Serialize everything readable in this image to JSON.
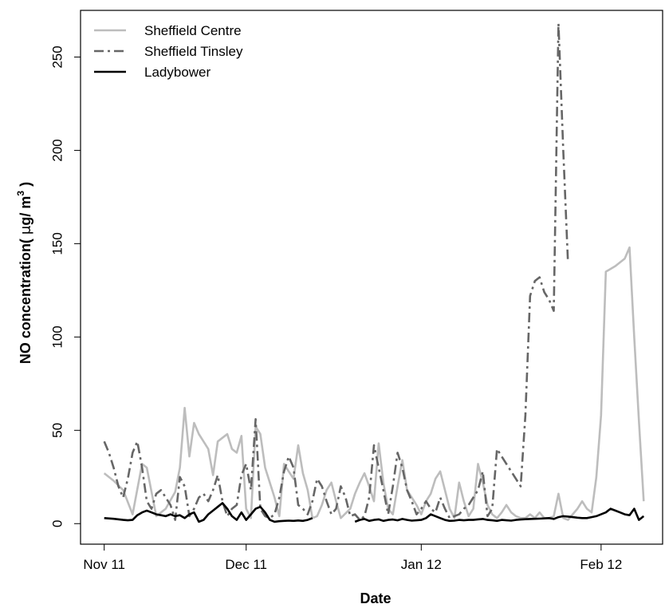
{
  "chart_data": {
    "type": "line",
    "title": "",
    "xlabel": "Date",
    "ylabel": "NO concentration( μg/ m³ )",
    "ylabel_parts": {
      "main": "NO concentration( ",
      "unit_mu": "μ",
      "unit_rest": "g/ m",
      "sup": "3",
      "close": " )"
    },
    "x_ticks": [
      {
        "label": "Nov 11",
        "day": 0
      },
      {
        "label": "Dec 11",
        "day": 30
      },
      {
        "label": "Jan 12",
        "day": 67
      },
      {
        "label": "Feb 12",
        "day": 105
      }
    ],
    "xlim": [
      -5,
      118
    ],
    "ylim": [
      -11,
      275
    ],
    "y_ticks": [
      0,
      50,
      100,
      150,
      200,
      250
    ],
    "grid": false,
    "legend_position": "top-left",
    "series": [
      {
        "name": "Sheffield Centre",
        "color": "#bdbdbd",
        "dash": "solid",
        "points": [
          [
            0,
            27
          ],
          [
            2,
            23
          ],
          [
            4,
            18
          ],
          [
            6,
            5
          ],
          [
            8,
            32
          ],
          [
            9,
            30
          ],
          [
            11,
            4
          ],
          [
            13,
            8
          ],
          [
            15,
            17
          ],
          [
            16,
            30
          ],
          [
            17,
            62
          ],
          [
            18,
            36
          ],
          [
            19,
            54
          ],
          [
            20,
            48
          ],
          [
            21,
            44
          ],
          [
            22,
            40
          ],
          [
            23,
            26
          ],
          [
            24,
            44
          ],
          [
            25,
            46
          ],
          [
            26,
            48
          ],
          [
            27,
            40
          ],
          [
            28,
            38
          ],
          [
            29,
            47
          ],
          [
            30,
            8
          ],
          [
            31,
            3
          ],
          [
            32,
            52
          ],
          [
            33,
            48
          ],
          [
            34,
            30
          ],
          [
            35,
            22
          ],
          [
            36,
            14
          ],
          [
            37,
            4
          ],
          [
            38,
            32
          ],
          [
            39,
            28
          ],
          [
            40,
            24
          ],
          [
            41,
            42
          ],
          [
            42,
            27
          ],
          [
            43,
            18
          ],
          [
            44,
            3
          ],
          [
            45,
            4
          ],
          [
            46,
            10
          ],
          [
            47,
            18
          ],
          [
            48,
            22
          ],
          [
            49,
            12
          ],
          [
            50,
            3
          ],
          [
            52,
            8
          ],
          [
            53,
            16
          ],
          [
            54,
            22
          ],
          [
            55,
            27
          ],
          [
            56,
            20
          ],
          [
            57,
            12
          ],
          [
            58,
            43
          ],
          [
            59,
            22
          ],
          [
            60,
            8
          ],
          [
            61,
            5
          ],
          [
            62,
            20
          ],
          [
            63,
            34
          ],
          [
            64,
            18
          ],
          [
            65,
            14
          ],
          [
            66,
            10
          ],
          [
            67,
            5
          ],
          [
            68,
            12
          ],
          [
            69,
            16
          ],
          [
            70,
            24
          ],
          [
            71,
            28
          ],
          [
            72,
            18
          ],
          [
            73,
            8
          ],
          [
            74,
            3
          ],
          [
            75,
            22
          ],
          [
            76,
            12
          ],
          [
            77,
            4
          ],
          [
            78,
            8
          ],
          [
            79,
            32
          ],
          [
            80,
            22
          ],
          [
            81,
            10
          ],
          [
            82,
            5
          ],
          [
            83,
            3
          ],
          [
            84,
            6
          ],
          [
            85,
            10
          ],
          [
            86,
            6
          ],
          [
            87,
            4
          ],
          [
            88,
            3
          ],
          [
            89,
            3
          ],
          [
            90,
            5
          ],
          [
            91,
            3
          ],
          [
            92,
            6
          ],
          [
            93,
            3
          ],
          [
            94,
            3
          ],
          [
            95,
            4
          ],
          [
            96,
            16
          ],
          [
            97,
            3
          ],
          [
            98,
            2
          ],
          [
            99,
            5
          ],
          [
            100,
            8
          ],
          [
            101,
            12
          ],
          [
            102,
            8
          ],
          [
            103,
            6
          ],
          [
            104,
            25
          ],
          [
            105,
            58
          ],
          [
            106,
            135
          ],
          [
            108,
            138
          ],
          [
            110,
            142
          ],
          [
            111,
            148
          ],
          [
            112,
            100
          ],
          [
            113,
            55
          ],
          [
            114,
            12
          ]
        ]
      },
      {
        "name": "Sheffield Tinsley",
        "color": "#666666",
        "dash": "dashdot",
        "points": [
          [
            0,
            44
          ],
          [
            1,
            38
          ],
          [
            2,
            30
          ],
          [
            3,
            20
          ],
          [
            4,
            14
          ],
          [
            5,
            24
          ],
          [
            6,
            38
          ],
          [
            7,
            44
          ],
          [
            8,
            30
          ],
          [
            9,
            12
          ],
          [
            10,
            8
          ],
          [
            11,
            16
          ],
          [
            12,
            18
          ],
          [
            13,
            14
          ],
          [
            14,
            10
          ],
          [
            15,
            2
          ],
          [
            16,
            25
          ],
          [
            17,
            20
          ],
          [
            18,
            4
          ],
          [
            19,
            8
          ],
          [
            20,
            14
          ],
          [
            21,
            16
          ],
          [
            22,
            12
          ],
          [
            23,
            18
          ],
          [
            24,
            26
          ],
          [
            25,
            12
          ],
          [
            26,
            4
          ],
          [
            27,
            8
          ],
          [
            28,
            10
          ],
          [
            29,
            26
          ],
          [
            30,
            32
          ],
          [
            31,
            18
          ],
          [
            32,
            56
          ],
          [
            33,
            8
          ],
          [
            34,
            4
          ],
          [
            35,
            3
          ],
          [
            36,
            5
          ],
          [
            37,
            14
          ],
          [
            38,
            28
          ],
          [
            39,
            36
          ],
          [
            40,
            30
          ],
          [
            41,
            10
          ],
          [
            42,
            8
          ],
          [
            43,
            5
          ],
          [
            44,
            12
          ],
          [
            45,
            24
          ],
          [
            46,
            20
          ],
          [
            47,
            12
          ],
          [
            48,
            5
          ],
          [
            49,
            8
          ],
          [
            50,
            20
          ],
          [
            51,
            14
          ],
          [
            52,
            4
          ],
          [
            53,
            5
          ],
          [
            54,
            2
          ],
          [
            55,
            4
          ],
          [
            56,
            14
          ],
          [
            57,
            42
          ],
          [
            58,
            30
          ],
          [
            59,
            18
          ],
          [
            60,
            5
          ],
          [
            61,
            20
          ],
          [
            62,
            38
          ],
          [
            63,
            30
          ],
          [
            64,
            18
          ],
          [
            65,
            12
          ],
          [
            66,
            5
          ],
          [
            67,
            8
          ],
          [
            68,
            12
          ],
          [
            69,
            8
          ],
          [
            70,
            6
          ],
          [
            71,
            14
          ],
          [
            72,
            8
          ],
          [
            73,
            3
          ],
          [
            74,
            4
          ],
          [
            75,
            5
          ],
          [
            76,
            8
          ],
          [
            77,
            10
          ],
          [
            78,
            14
          ],
          [
            79,
            18
          ],
          [
            80,
            28
          ],
          [
            81,
            4
          ],
          [
            82,
            8
          ],
          [
            83,
            40
          ],
          [
            84,
            36
          ],
          [
            85,
            32
          ],
          [
            86,
            28
          ],
          [
            87,
            24
          ],
          [
            88,
            20
          ],
          [
            89,
            58
          ],
          [
            90,
            122
          ],
          [
            91,
            130
          ],
          [
            92,
            132
          ],
          [
            93,
            124
          ],
          [
            94,
            120
          ],
          [
            95,
            114
          ],
          [
            96,
            268
          ],
          [
            97,
            200
          ],
          [
            98,
            140
          ]
        ]
      },
      {
        "name": "Ladybower",
        "color": "#000000",
        "dash": "solid",
        "segments": [
          [
            [
              0,
              3
            ],
            [
              2,
              2.6
            ],
            [
              4,
              2
            ],
            [
              5,
              1.8
            ],
            [
              6,
              2
            ],
            [
              7,
              4.5
            ],
            [
              8,
              6
            ],
            [
              9,
              7
            ],
            [
              10,
              6
            ],
            [
              11,
              5
            ],
            [
              12,
              4.5
            ],
            [
              13,
              4
            ],
            [
              14,
              5
            ],
            [
              15,
              4
            ],
            [
              16,
              4.5
            ],
            [
              17,
              3
            ],
            [
              18,
              5
            ],
            [
              19,
              6
            ],
            [
              20,
              1
            ],
            [
              21,
              2
            ],
            [
              22,
              5
            ],
            [
              23,
              7
            ],
            [
              24,
              9
            ],
            [
              25,
              11
            ],
            [
              26,
              8
            ],
            [
              27,
              4
            ],
            [
              28,
              2
            ],
            [
              29,
              6
            ],
            [
              30,
              2
            ],
            [
              31,
              5
            ],
            [
              32,
              8
            ],
            [
              33,
              9
            ],
            [
              34,
              6
            ],
            [
              35,
              2
            ],
            [
              36,
              1
            ],
            [
              37,
              1.3
            ],
            [
              38,
              1.5
            ],
            [
              39,
              1.6
            ],
            [
              40,
              1.5
            ],
            [
              41,
              1.7
            ],
            [
              42,
              1.5
            ],
            [
              43,
              2
            ],
            [
              44,
              3
            ]
          ],
          [
            [
              53,
              1
            ],
            [
              54,
              2
            ],
            [
              55,
              2.5
            ],
            [
              56,
              1.5
            ],
            [
              57,
              2
            ],
            [
              58,
              2.3
            ],
            [
              59,
              1.5
            ],
            [
              60,
              2
            ],
            [
              61,
              2.2
            ],
            [
              62,
              1.8
            ],
            [
              63,
              2.5
            ],
            [
              64,
              2
            ],
            [
              65,
              1.6
            ],
            [
              66,
              1.8
            ],
            [
              67,
              2
            ],
            [
              68,
              3
            ],
            [
              69,
              5
            ],
            [
              70,
              4
            ],
            [
              71,
              3
            ],
            [
              72,
              2
            ],
            [
              73,
              1.5
            ],
            [
              74,
              1.6
            ],
            [
              75,
              2
            ],
            [
              76,
              1.8
            ],
            [
              77,
              2
            ],
            [
              78,
              2
            ],
            [
              79,
              2.3
            ],
            [
              80,
              2.5
            ],
            [
              81,
              2
            ],
            [
              82,
              1.8
            ],
            [
              83,
              1.5
            ],
            [
              84,
              2
            ],
            [
              85,
              1.8
            ],
            [
              86,
              1.6
            ],
            [
              87,
              2
            ],
            [
              88,
              2.2
            ],
            [
              89,
              2.4
            ],
            [
              90,
              2.5
            ],
            [
              91,
              2.6
            ],
            [
              92,
              2.7
            ],
            [
              93,
              2.8
            ],
            [
              94,
              3
            ],
            [
              95,
              2.5
            ],
            [
              96,
              3.5
            ],
            [
              97,
              4
            ],
            [
              98,
              3.8
            ],
            [
              99,
              3.5
            ],
            [
              100,
              3.2
            ],
            [
              101,
              3
            ],
            [
              102,
              3
            ],
            [
              103,
              3.5
            ],
            [
              104,
              4
            ],
            [
              105,
              5
            ],
            [
              106,
              6
            ],
            [
              107,
              8
            ],
            [
              108,
              7
            ],
            [
              109,
              6
            ],
            [
              110,
              5
            ],
            [
              111,
              4.5
            ],
            [
              112,
              8
            ],
            [
              113,
              2
            ],
            [
              114,
              4
            ]
          ]
        ]
      }
    ]
  }
}
